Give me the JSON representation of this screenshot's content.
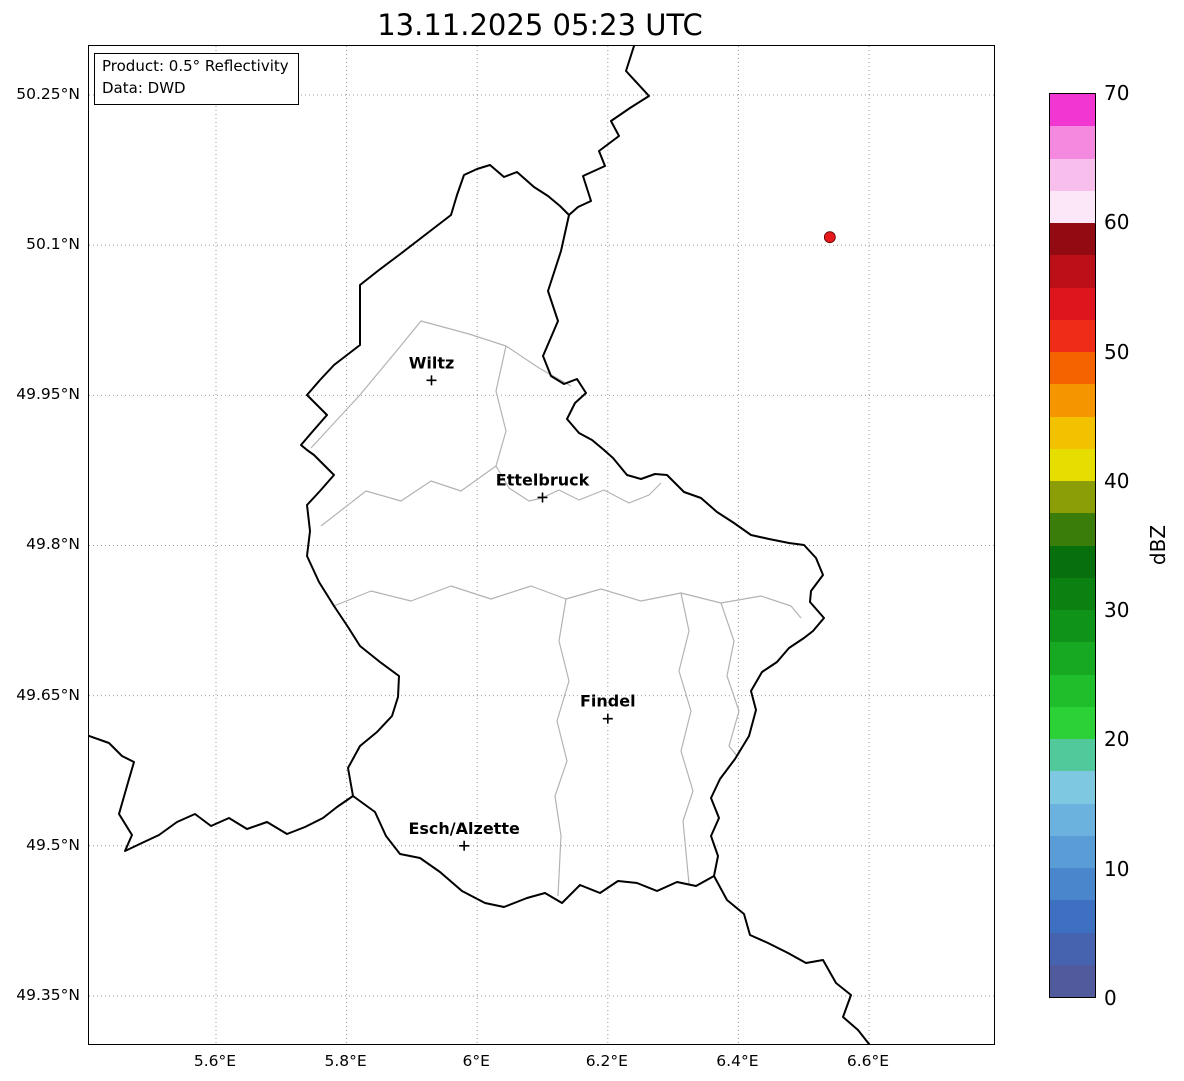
{
  "title": "13.11.2025 05:23 UTC",
  "info_box": {
    "line1": "Product: 0.5° Reflectivity",
    "line2": "Data: DWD"
  },
  "axes": {
    "lat_ticks": [
      {
        "label": "50.25°N",
        "value": 50.25
      },
      {
        "label": "50.1°N",
        "value": 50.1
      },
      {
        "label": "49.95°N",
        "value": 49.95
      },
      {
        "label": "49.8°N",
        "value": 49.8
      },
      {
        "label": "49.65°N",
        "value": 49.65
      },
      {
        "label": "49.5°N",
        "value": 49.5
      },
      {
        "label": "49.35°N",
        "value": 49.35
      }
    ],
    "lon_ticks": [
      {
        "label": "5.6°E",
        "value": 5.6
      },
      {
        "label": "5.8°E",
        "value": 5.8
      },
      {
        "label": "6°E",
        "value": 6.0
      },
      {
        "label": "6.2°E",
        "value": 6.2
      },
      {
        "label": "6.4°E",
        "value": 6.4
      },
      {
        "label": "6.6°E",
        "value": 6.6
      }
    ]
  },
  "cities": [
    {
      "name": "Wiltz",
      "lon": 5.93,
      "lat": 49.965
    },
    {
      "name": "Ettelbruck",
      "lon": 6.1,
      "lat": 49.848
    },
    {
      "name": "Findel",
      "lon": 6.2,
      "lat": 49.627
    },
    {
      "name": "Esch/Alzette",
      "lon": 5.98,
      "lat": 49.5
    }
  ],
  "radar_echoes": [
    {
      "lon": 6.54,
      "lat": 50.108,
      "dbz": 50,
      "color": "#E8191C"
    }
  ],
  "colorbar": {
    "label": "dBZ",
    "min": 0,
    "max": 70,
    "tick_values": [
      0,
      10,
      20,
      30,
      40,
      50,
      60,
      70
    ],
    "colors_low_to_high": [
      "#515A9C",
      "#4563AF",
      "#3D70C0",
      "#4A86CC",
      "#599CD6",
      "#6BB2DF",
      "#7FC8E2",
      "#52C99A",
      "#2BD136",
      "#1FBF2B",
      "#16A921",
      "#0F9419",
      "#0B8112",
      "#086F0D",
      "#3B7D0A",
      "#8C9E07",
      "#E5DE00",
      "#F2C100",
      "#F59600",
      "#F56300",
      "#EE2C18",
      "#DF151D",
      "#BC1019",
      "#930B12",
      "#FBE7F7",
      "#F8BFEC",
      "#F489DF",
      "#F136D2"
    ]
  }
}
